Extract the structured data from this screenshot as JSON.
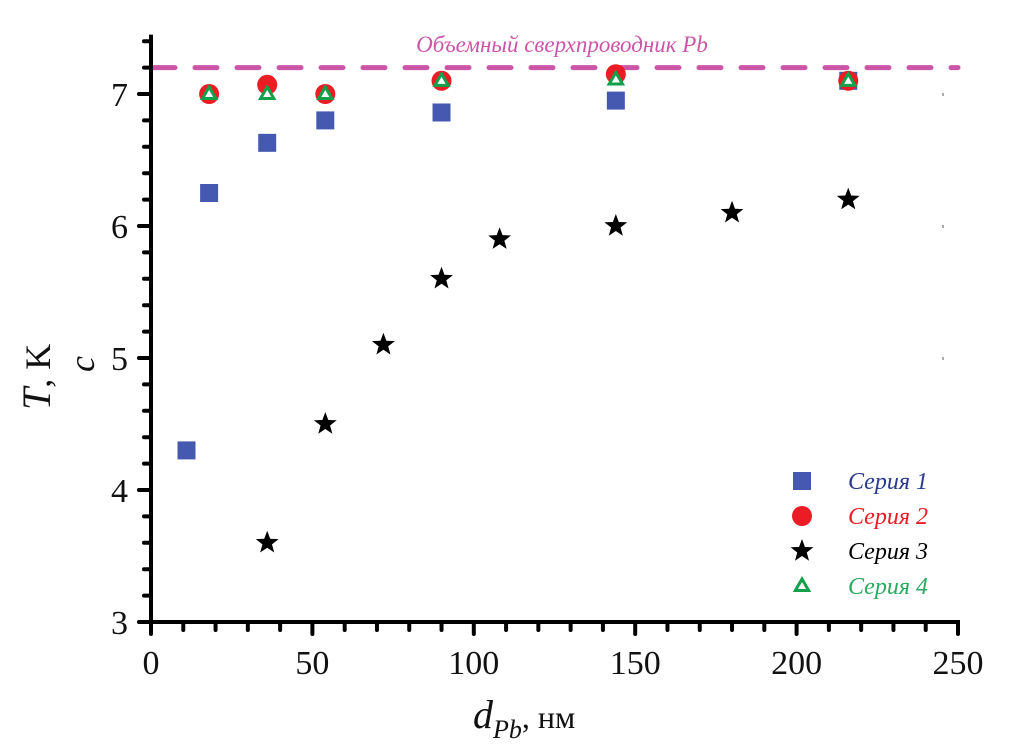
{
  "chart_data": {
    "type": "scatter",
    "title": "",
    "xlabel": "d_Pb, нм",
    "xlabel_parts": {
      "main": "d",
      "sub": "Pb",
      "unit": ", нм"
    },
    "ylabel": "T_c, K",
    "ylabel_parts": {
      "main": "T",
      "sub": "c",
      "unit": ", K"
    },
    "xlim": [
      0,
      250
    ],
    "ylim": [
      3,
      7.45
    ],
    "x_ticks": [
      0,
      50,
      100,
      150,
      200,
      250
    ],
    "x_tick_labels": [
      "0",
      "50",
      "100",
      "150",
      "200",
      "250"
    ],
    "x_minor_step": 10,
    "y_ticks": [
      3,
      4,
      5,
      6,
      7
    ],
    "y_tick_labels": [
      "3",
      "4",
      "5",
      "6",
      "7"
    ],
    "y_minor_step": 0.2,
    "grid": false,
    "legend_position": "bottom-right",
    "reference_line": {
      "y": 7.2,
      "label": "Объемный сверхпроводник Pb",
      "style": "dashed",
      "color": "#cc55a8"
    },
    "series": [
      {
        "name": "Серия 1",
        "marker": "square",
        "color": "#4659b0",
        "text_color": "#2b3a8f",
        "points": [
          [
            11,
            4.3
          ],
          [
            18,
            6.25
          ],
          [
            36,
            6.63
          ],
          [
            54,
            6.8
          ],
          [
            90,
            6.86
          ],
          [
            144,
            6.95
          ],
          [
            216,
            7.1
          ]
        ]
      },
      {
        "name": "Серия 2",
        "marker": "circle",
        "color": "#ec1c24",
        "text_color": "#ec1c24",
        "points": [
          [
            18,
            7.0
          ],
          [
            36,
            7.07
          ],
          [
            54,
            7.0
          ],
          [
            90,
            7.1
          ],
          [
            144,
            7.15
          ],
          [
            216,
            7.1
          ]
        ]
      },
      {
        "name": "Серия 3",
        "marker": "star",
        "color": "#000000",
        "text_color": "#000000",
        "points": [
          [
            36,
            3.6
          ],
          [
            54,
            4.5
          ],
          [
            72,
            5.1
          ],
          [
            90,
            5.6
          ],
          [
            108,
            5.9
          ],
          [
            144,
            6.0
          ],
          [
            180,
            6.1
          ],
          [
            216,
            6.2
          ]
        ]
      },
      {
        "name": "Серия 4",
        "marker": "triangle-open",
        "color": "#12a04a",
        "text_color": "#2aaa60",
        "points": [
          [
            18,
            7.0
          ],
          [
            36,
            7.0
          ],
          [
            54,
            7.0
          ],
          [
            90,
            7.1
          ],
          [
            144,
            7.11
          ],
          [
            216,
            7.1
          ]
        ]
      }
    ]
  }
}
